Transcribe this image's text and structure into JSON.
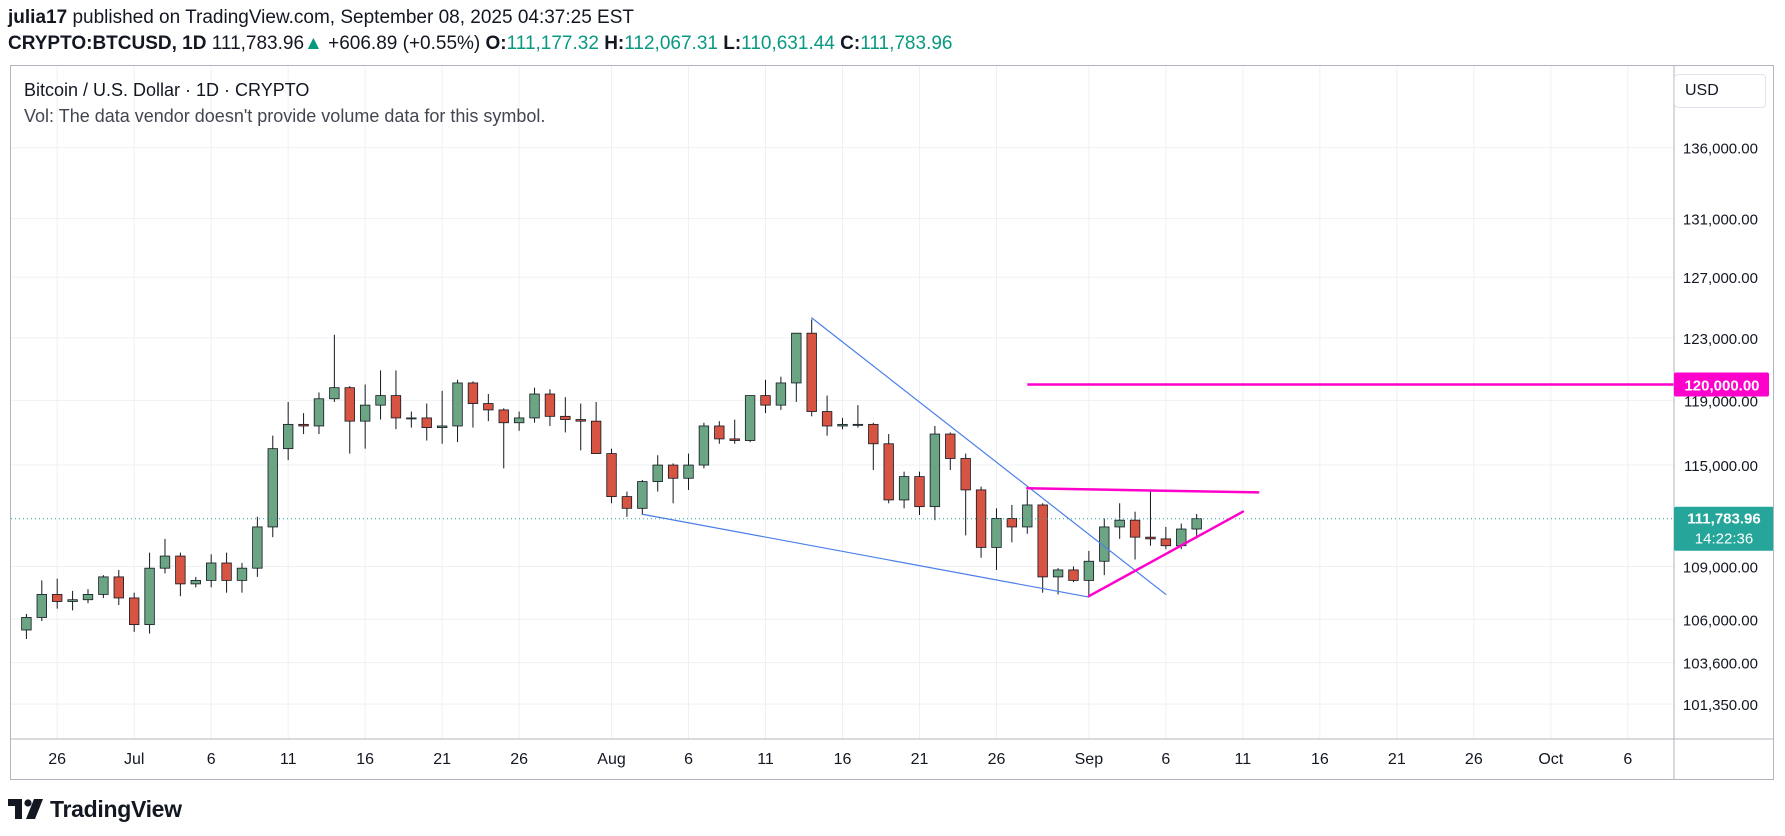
{
  "header": {
    "author": "julia17",
    "published_text": "published on TradingView.com, September 08, 2025 04:37:25 EST",
    "symbol": "CRYPTO:BTCUSD, 1D",
    "last": "111,783.96",
    "change_arrow": "▲",
    "change": "+606.89 (+0.55%)",
    "open_label": "O:",
    "open": "111,177.32",
    "high_label": "H:",
    "high": "112,067.31",
    "low_label": "L:",
    "low": "110,631.44",
    "close_label": "C:",
    "close": "111,783.96"
  },
  "legend": {
    "title": "Bitcoin / U.S. Dollar · 1D · CRYPTO",
    "volume_note": "Vol: The data vendor doesn't provide volume data for this symbol."
  },
  "currency_button": "USD",
  "footer": {
    "brand": "TradingView",
    "logo_icon": "tradingview-logo-icon"
  },
  "colors": {
    "up": "#6ba583",
    "down": "#d75442",
    "trendline": "#4a7fe8",
    "drawing": "#ff00cc",
    "last_price": "#26a69a",
    "grid": "#eef0f3"
  },
  "chart_data": {
    "type": "candlestick",
    "y_scale": "log",
    "ylim": [
      99500,
      142000
    ],
    "y_ticks": [
      101350,
      103600,
      106000,
      109000,
      111784,
      115000,
      119000,
      123000,
      127000,
      131000,
      136000
    ],
    "y_tick_labels": [
      "101,350.00",
      "103,600.00",
      "106,000.00",
      "109,000.00",
      "",
      "115,000.00",
      "119,000.00",
      "123,000.00",
      "127,000.00",
      "131,000.00",
      "136,000.00"
    ],
    "x_range": [
      "2025-06-23",
      "2025-10-09"
    ],
    "x_ticks": [
      {
        "date": "2025-06-26",
        "label": "26"
      },
      {
        "date": "2025-07-01",
        "label": "Jul"
      },
      {
        "date": "2025-07-06",
        "label": "6"
      },
      {
        "date": "2025-07-11",
        "label": "11"
      },
      {
        "date": "2025-07-16",
        "label": "16"
      },
      {
        "date": "2025-07-21",
        "label": "21"
      },
      {
        "date": "2025-07-26",
        "label": "26"
      },
      {
        "date": "2025-08-01",
        "label": "Aug"
      },
      {
        "date": "2025-08-06",
        "label": "6"
      },
      {
        "date": "2025-08-11",
        "label": "11"
      },
      {
        "date": "2025-08-16",
        "label": "16"
      },
      {
        "date": "2025-08-21",
        "label": "21"
      },
      {
        "date": "2025-08-26",
        "label": "26"
      },
      {
        "date": "2025-09-01",
        "label": "Sep"
      },
      {
        "date": "2025-09-06",
        "label": "6"
      },
      {
        "date": "2025-09-11",
        "label": "11"
      },
      {
        "date": "2025-09-16",
        "label": "16"
      },
      {
        "date": "2025-09-21",
        "label": "21"
      },
      {
        "date": "2025-09-26",
        "label": "26"
      },
      {
        "date": "2025-10-01",
        "label": "Oct"
      },
      {
        "date": "2025-10-06",
        "label": "6"
      }
    ],
    "candles": [
      {
        "date": "2025-06-24",
        "o": 105400,
        "h": 106300,
        "l": 104900,
        "c": 106100
      },
      {
        "date": "2025-06-25",
        "o": 106100,
        "h": 108200,
        "l": 105900,
        "c": 107400
      },
      {
        "date": "2025-06-26",
        "o": 107400,
        "h": 108300,
        "l": 106600,
        "c": 107000
      },
      {
        "date": "2025-06-27",
        "o": 107000,
        "h": 107600,
        "l": 106500,
        "c": 107100
      },
      {
        "date": "2025-06-28",
        "o": 107100,
        "h": 107700,
        "l": 106900,
        "c": 107400
      },
      {
        "date": "2025-06-29",
        "o": 107400,
        "h": 108500,
        "l": 107200,
        "c": 108400
      },
      {
        "date": "2025-06-30",
        "o": 108400,
        "h": 108800,
        "l": 106800,
        "c": 107200
      },
      {
        "date": "2025-07-01",
        "o": 107200,
        "h": 107500,
        "l": 105300,
        "c": 105700
      },
      {
        "date": "2025-07-02",
        "o": 105700,
        "h": 109800,
        "l": 105200,
        "c": 108900
      },
      {
        "date": "2025-07-03",
        "o": 108900,
        "h": 110600,
        "l": 108600,
        "c": 109600
      },
      {
        "date": "2025-07-04",
        "o": 109600,
        "h": 109800,
        "l": 107300,
        "c": 108000
      },
      {
        "date": "2025-07-05",
        "o": 108000,
        "h": 108400,
        "l": 107800,
        "c": 108200
      },
      {
        "date": "2025-07-06",
        "o": 108200,
        "h": 109700,
        "l": 107800,
        "c": 109200
      },
      {
        "date": "2025-07-07",
        "o": 109200,
        "h": 109800,
        "l": 107500,
        "c": 108200
      },
      {
        "date": "2025-07-08",
        "o": 108200,
        "h": 109200,
        "l": 107500,
        "c": 108900
      },
      {
        "date": "2025-07-09",
        "o": 108900,
        "h": 111900,
        "l": 108400,
        "c": 111300
      },
      {
        "date": "2025-07-10",
        "o": 111300,
        "h": 116800,
        "l": 110700,
        "c": 116000
      },
      {
        "date": "2025-07-11",
        "o": 116000,
        "h": 118900,
        "l": 115300,
        "c": 117500
      },
      {
        "date": "2025-07-12",
        "o": 117500,
        "h": 118200,
        "l": 116900,
        "c": 117400
      },
      {
        "date": "2025-07-13",
        "o": 117400,
        "h": 119500,
        "l": 116900,
        "c": 119100
      },
      {
        "date": "2025-07-14",
        "o": 119100,
        "h": 123200,
        "l": 118900,
        "c": 119800
      },
      {
        "date": "2025-07-15",
        "o": 119800,
        "h": 119900,
        "l": 115700,
        "c": 117700
      },
      {
        "date": "2025-07-16",
        "o": 117700,
        "h": 120000,
        "l": 116000,
        "c": 118700
      },
      {
        "date": "2025-07-17",
        "o": 118700,
        "h": 120900,
        "l": 117800,
        "c": 119300
      },
      {
        "date": "2025-07-18",
        "o": 119300,
        "h": 120900,
        "l": 117200,
        "c": 117900
      },
      {
        "date": "2025-07-19",
        "o": 117900,
        "h": 118300,
        "l": 117300,
        "c": 117900
      },
      {
        "date": "2025-07-20",
        "o": 117900,
        "h": 118800,
        "l": 116500,
        "c": 117300
      },
      {
        "date": "2025-07-21",
        "o": 117300,
        "h": 119600,
        "l": 116300,
        "c": 117400
      },
      {
        "date": "2025-07-22",
        "o": 117400,
        "h": 120300,
        "l": 116400,
        "c": 120100
      },
      {
        "date": "2025-07-23",
        "o": 120100,
        "h": 120200,
        "l": 117300,
        "c": 118800
      },
      {
        "date": "2025-07-24",
        "o": 118800,
        "h": 119400,
        "l": 117700,
        "c": 118400
      },
      {
        "date": "2025-07-25",
        "o": 118400,
        "h": 118500,
        "l": 114800,
        "c": 117600
      },
      {
        "date": "2025-07-26",
        "o": 117600,
        "h": 118300,
        "l": 117100,
        "c": 117900
      },
      {
        "date": "2025-07-27",
        "o": 117900,
        "h": 119800,
        "l": 117600,
        "c": 119400
      },
      {
        "date": "2025-07-28",
        "o": 119400,
        "h": 119700,
        "l": 117400,
        "c": 118000
      },
      {
        "date": "2025-07-29",
        "o": 118000,
        "h": 119200,
        "l": 117000,
        "c": 117800
      },
      {
        "date": "2025-07-30",
        "o": 117800,
        "h": 118800,
        "l": 115900,
        "c": 117700
      },
      {
        "date": "2025-07-31",
        "o": 117700,
        "h": 118900,
        "l": 115700,
        "c": 115700
      },
      {
        "date": "2025-08-01",
        "o": 115700,
        "h": 116000,
        "l": 112700,
        "c": 113100
      },
      {
        "date": "2025-08-02",
        "o": 113100,
        "h": 113400,
        "l": 111900,
        "c": 112400
      },
      {
        "date": "2025-08-03",
        "o": 112400,
        "h": 114100,
        "l": 112000,
        "c": 114000
      },
      {
        "date": "2025-08-04",
        "o": 114000,
        "h": 115600,
        "l": 113400,
        "c": 115000
      },
      {
        "date": "2025-08-05",
        "o": 115000,
        "h": 115100,
        "l": 112700,
        "c": 114200
      },
      {
        "date": "2025-08-06",
        "o": 114200,
        "h": 115700,
        "l": 113500,
        "c": 115000
      },
      {
        "date": "2025-08-07",
        "o": 115000,
        "h": 117600,
        "l": 114800,
        "c": 117400
      },
      {
        "date": "2025-08-08",
        "o": 117400,
        "h": 117700,
        "l": 116300,
        "c": 116600
      },
      {
        "date": "2025-08-09",
        "o": 116600,
        "h": 117800,
        "l": 116300,
        "c": 116500
      },
      {
        "date": "2025-08-10",
        "o": 116500,
        "h": 119300,
        "l": 116400,
        "c": 119300
      },
      {
        "date": "2025-08-11",
        "o": 119300,
        "h": 120300,
        "l": 118200,
        "c": 118700
      },
      {
        "date": "2025-08-12",
        "o": 118700,
        "h": 120500,
        "l": 118400,
        "c": 120100
      },
      {
        "date": "2025-08-13",
        "o": 120100,
        "h": 123300,
        "l": 118900,
        "c": 123300
      },
      {
        "date": "2025-08-14",
        "o": 123300,
        "h": 124200,
        "l": 118000,
        "c": 118300
      },
      {
        "date": "2025-08-15",
        "o": 118300,
        "h": 119300,
        "l": 116800,
        "c": 117400
      },
      {
        "date": "2025-08-16",
        "o": 117400,
        "h": 117900,
        "l": 117200,
        "c": 117500
      },
      {
        "date": "2025-08-17",
        "o": 117500,
        "h": 118700,
        "l": 117300,
        "c": 117500
      },
      {
        "date": "2025-08-18",
        "o": 117500,
        "h": 117600,
        "l": 114700,
        "c": 116300
      },
      {
        "date": "2025-08-19",
        "o": 116300,
        "h": 116900,
        "l": 112700,
        "c": 112900
      },
      {
        "date": "2025-08-20",
        "o": 112900,
        "h": 114600,
        "l": 112400,
        "c": 114300
      },
      {
        "date": "2025-08-21",
        "o": 114300,
        "h": 114600,
        "l": 112000,
        "c": 112500
      },
      {
        "date": "2025-08-22",
        "o": 112500,
        "h": 117400,
        "l": 111700,
        "c": 116900
      },
      {
        "date": "2025-08-23",
        "o": 116900,
        "h": 117000,
        "l": 114700,
        "c": 115400
      },
      {
        "date": "2025-08-24",
        "o": 115400,
        "h": 115700,
        "l": 110800,
        "c": 113500
      },
      {
        "date": "2025-08-25",
        "o": 113500,
        "h": 113700,
        "l": 109500,
        "c": 110100
      },
      {
        "date": "2025-08-26",
        "o": 110100,
        "h": 112400,
        "l": 108800,
        "c": 111800
      },
      {
        "date": "2025-08-27",
        "o": 111800,
        "h": 112600,
        "l": 110400,
        "c": 111300
      },
      {
        "date": "2025-08-28",
        "o": 111300,
        "h": 113500,
        "l": 110900,
        "c": 112600
      },
      {
        "date": "2025-08-29",
        "o": 112600,
        "h": 112700,
        "l": 107500,
        "c": 108400
      },
      {
        "date": "2025-08-30",
        "o": 108400,
        "h": 108900,
        "l": 107400,
        "c": 108800
      },
      {
        "date": "2025-08-31",
        "o": 108800,
        "h": 109000,
        "l": 108100,
        "c": 108200
      },
      {
        "date": "2025-09-01",
        "o": 108200,
        "h": 109900,
        "l": 107300,
        "c": 109300
      },
      {
        "date": "2025-09-02",
        "o": 109300,
        "h": 111800,
        "l": 108500,
        "c": 111300
      },
      {
        "date": "2025-09-03",
        "o": 111300,
        "h": 112700,
        "l": 110600,
        "c": 111700
      },
      {
        "date": "2025-09-04",
        "o": 111700,
        "h": 112200,
        "l": 109400,
        "c": 110700
      },
      {
        "date": "2025-09-05",
        "o": 110700,
        "h": 113400,
        "l": 110200,
        "c": 110600
      },
      {
        "date": "2025-09-06",
        "o": 110600,
        "h": 111300,
        "l": 110000,
        "c": 110200
      },
      {
        "date": "2025-09-07",
        "o": 110200,
        "h": 111500,
        "l": 110000,
        "c": 111177
      },
      {
        "date": "2025-09-08",
        "o": 111177,
        "h": 112067,
        "l": 110631,
        "c": 111784
      }
    ],
    "price_lines": [
      {
        "price": 120000,
        "label": "120,000.00",
        "from_date": "2025-08-28"
      }
    ],
    "last_price": {
      "price": 111783.96,
      "label": "111,783.96",
      "countdown": "14:22:36"
    },
    "trendlines": [
      {
        "name": "blue-wedge-upper",
        "color": "#4a7fe8",
        "from": [
          "2025-08-14",
          124300
        ],
        "to": [
          "2025-09-06",
          107400
        ]
      },
      {
        "name": "blue-wedge-lower",
        "color": "#4a7fe8",
        "from": [
          "2025-08-03",
          112050
        ],
        "to": [
          "2025-09-01",
          107250
        ]
      },
      {
        "name": "magenta-upper",
        "color": "#ff00cc",
        "from": [
          "2025-08-28",
          113600
        ],
        "to": [
          "2025-09-12",
          113350
        ]
      },
      {
        "name": "magenta-lower",
        "color": "#ff00cc",
        "from": [
          "2025-09-01",
          107300
        ],
        "to": [
          "2025-09-11",
          112200
        ]
      }
    ]
  }
}
